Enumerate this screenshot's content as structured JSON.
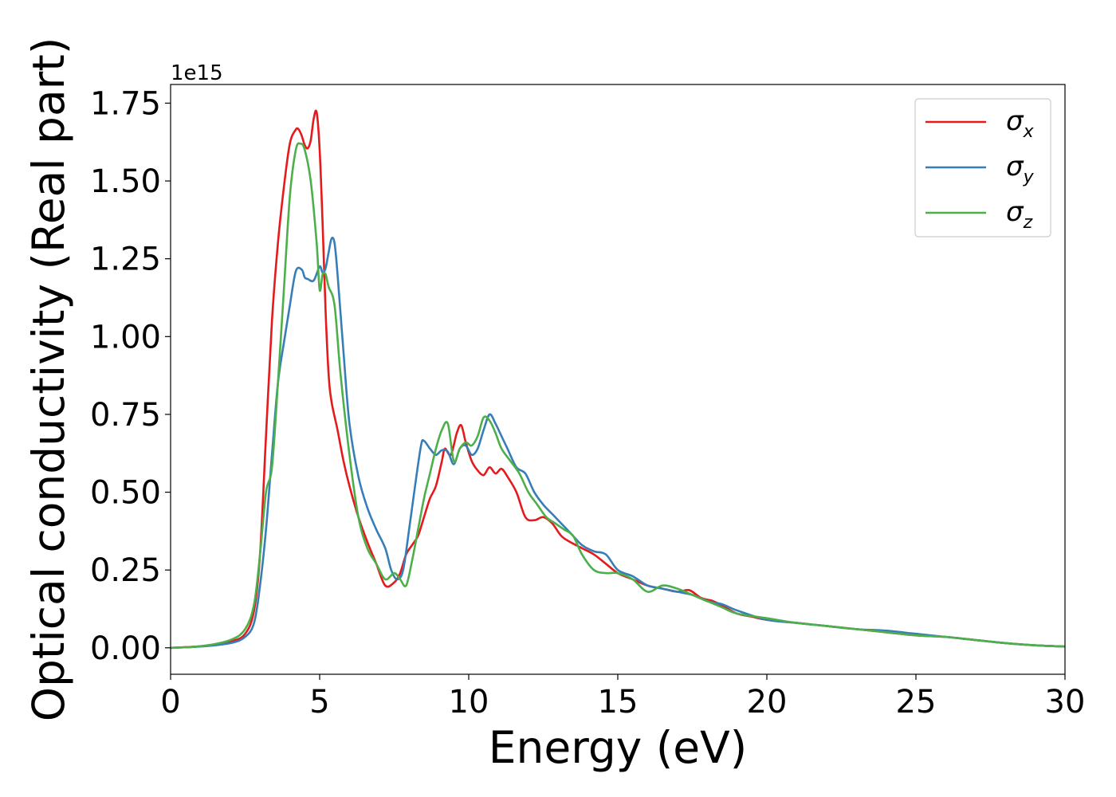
{
  "chart_data": {
    "type": "line",
    "title": "",
    "xlabel": "Energy (eV)",
    "ylabel": "Optical conductivity (Real part)",
    "y_offset_label": "1e15",
    "xlim": [
      0,
      30
    ],
    "ylim": [
      -0.085,
      1.81
    ],
    "xticks": [
      0,
      5,
      10,
      15,
      20,
      25,
      30
    ],
    "xtick_labels": [
      "0",
      "5",
      "10",
      "15",
      "20",
      "25",
      "30"
    ],
    "yticks": [
      0.0,
      0.25,
      0.5,
      0.75,
      1.0,
      1.25,
      1.5,
      1.75
    ],
    "ytick_labels": [
      "0.00",
      "0.25",
      "0.50",
      "0.75",
      "1.00",
      "1.25",
      "1.50",
      "1.75"
    ],
    "grid": false,
    "legend_position": "top-right",
    "series": [
      {
        "name": "σx",
        "legend_symbol": "σ",
        "legend_sub": "x",
        "color": "#e41a1c",
        "x": [
          0,
          1,
          2,
          2.5,
          2.8,
          3.0,
          3.2,
          3.4,
          3.6,
          3.8,
          4.0,
          4.2,
          4.3,
          4.4,
          4.5,
          4.6,
          4.7,
          4.8,
          4.9,
          5.0,
          5.1,
          5.2,
          5.3,
          5.4,
          5.6,
          5.8,
          6.0,
          6.3,
          6.6,
          6.9,
          7.2,
          7.5,
          7.7,
          7.9,
          8.1,
          8.3,
          8.5,
          8.7,
          8.9,
          9.1,
          9.2,
          9.4,
          9.6,
          9.75,
          9.9,
          10.1,
          10.3,
          10.5,
          10.7,
          10.9,
          11.1,
          11.3,
          11.6,
          11.9,
          12.2,
          12.5,
          12.8,
          13.1,
          13.4,
          13.8,
          14.2,
          14.6,
          15.0,
          15.5,
          16.0,
          16.5,
          17.0,
          17.4,
          17.8,
          18.2,
          18.6,
          19.0,
          19.5,
          20.0,
          21.0,
          22.0,
          23.0,
          24.0,
          25.0,
          26.0,
          27.0,
          28.0,
          29.0,
          30.0
        ],
        "y": [
          0.0,
          0.005,
          0.02,
          0.045,
          0.12,
          0.3,
          0.68,
          1.05,
          1.3,
          1.48,
          1.62,
          1.665,
          1.665,
          1.645,
          1.615,
          1.605,
          1.63,
          1.7,
          1.72,
          1.6,
          1.36,
          1.08,
          0.88,
          0.79,
          0.7,
          0.6,
          0.52,
          0.42,
          0.34,
          0.27,
          0.2,
          0.21,
          0.24,
          0.3,
          0.33,
          0.36,
          0.42,
          0.48,
          0.52,
          0.6,
          0.64,
          0.62,
          0.69,
          0.715,
          0.66,
          0.6,
          0.57,
          0.555,
          0.58,
          0.56,
          0.575,
          0.55,
          0.5,
          0.42,
          0.41,
          0.42,
          0.4,
          0.36,
          0.34,
          0.32,
          0.3,
          0.27,
          0.24,
          0.22,
          0.2,
          0.19,
          0.18,
          0.185,
          0.16,
          0.15,
          0.13,
          0.11,
          0.1,
          0.09,
          0.08,
          0.07,
          0.06,
          0.05,
          0.04,
          0.035,
          0.025,
          0.015,
          0.008,
          0.004
        ]
      },
      {
        "name": "σy",
        "legend_symbol": "σ",
        "legend_sub": "y",
        "color": "#377eb8",
        "x": [
          0,
          1,
          2,
          2.5,
          2.8,
          3.0,
          3.2,
          3.4,
          3.6,
          3.8,
          4.0,
          4.2,
          4.4,
          4.5,
          4.6,
          4.8,
          5.0,
          5.1,
          5.2,
          5.3,
          5.4,
          5.5,
          5.6,
          5.8,
          6.0,
          6.3,
          6.6,
          6.9,
          7.2,
          7.4,
          7.6,
          7.8,
          8.0,
          8.2,
          8.4,
          8.5,
          8.7,
          8.9,
          9.1,
          9.3,
          9.5,
          9.7,
          9.9,
          10.1,
          10.3,
          10.5,
          10.7,
          10.9,
          11.1,
          11.3,
          11.6,
          11.9,
          12.2,
          12.5,
          12.8,
          13.1,
          13.4,
          13.8,
          14.2,
          14.6,
          15.0,
          15.5,
          16.0,
          16.5,
          17.0,
          17.5,
          18.0,
          18.5,
          19.0,
          20.0,
          21.0,
          22.0,
          23.0,
          24.0,
          25.0,
          26.0,
          27.0,
          28.0,
          29.0,
          30.0
        ],
        "y": [
          0.0,
          0.004,
          0.015,
          0.035,
          0.08,
          0.2,
          0.38,
          0.62,
          0.85,
          0.98,
          1.1,
          1.21,
          1.215,
          1.19,
          1.185,
          1.18,
          1.225,
          1.205,
          1.22,
          1.27,
          1.315,
          1.3,
          1.2,
          0.95,
          0.72,
          0.55,
          0.45,
          0.38,
          0.32,
          0.25,
          0.22,
          0.25,
          0.38,
          0.52,
          0.65,
          0.665,
          0.64,
          0.62,
          0.635,
          0.63,
          0.59,
          0.64,
          0.65,
          0.62,
          0.64,
          0.7,
          0.75,
          0.72,
          0.68,
          0.64,
          0.58,
          0.56,
          0.5,
          0.46,
          0.43,
          0.4,
          0.37,
          0.33,
          0.31,
          0.3,
          0.25,
          0.23,
          0.2,
          0.19,
          0.18,
          0.17,
          0.15,
          0.14,
          0.12,
          0.09,
          0.08,
          0.07,
          0.06,
          0.055,
          0.045,
          0.035,
          0.025,
          0.015,
          0.008,
          0.004
        ]
      },
      {
        "name": "σz",
        "legend_symbol": "σ",
        "legend_sub": "z",
        "color": "#4daf4a",
        "x": [
          0,
          1,
          2,
          2.5,
          2.8,
          3.0,
          3.2,
          3.4,
          3.6,
          3.8,
          4.0,
          4.2,
          4.35,
          4.5,
          4.7,
          4.9,
          5.0,
          5.1,
          5.2,
          5.3,
          5.5,
          5.7,
          6.0,
          6.3,
          6.6,
          6.9,
          7.2,
          7.5,
          7.7,
          7.9,
          8.1,
          8.3,
          8.5,
          8.7,
          8.9,
          9.1,
          9.3,
          9.5,
          9.7,
          9.9,
          10.1,
          10.3,
          10.5,
          10.7,
          10.9,
          11.1,
          11.4,
          11.7,
          12.0,
          12.3,
          12.6,
          12.9,
          13.2,
          13.5,
          13.8,
          14.2,
          14.6,
          15.0,
          15.5,
          16.0,
          16.5,
          17.0,
          17.5,
          18.0,
          18.5,
          19.0,
          20.0,
          21.0,
          22.0,
          23.0,
          24.0,
          25.0,
          26.0,
          27.0,
          28.0,
          29.0,
          30.0
        ],
        "y": [
          0.0,
          0.005,
          0.025,
          0.06,
          0.14,
          0.3,
          0.5,
          0.58,
          0.85,
          1.15,
          1.45,
          1.6,
          1.62,
          1.6,
          1.5,
          1.3,
          1.15,
          1.2,
          1.2,
          1.16,
          1.1,
          0.88,
          0.62,
          0.42,
          0.32,
          0.27,
          0.22,
          0.24,
          0.22,
          0.2,
          0.28,
          0.38,
          0.48,
          0.56,
          0.64,
          0.7,
          0.72,
          0.6,
          0.64,
          0.66,
          0.65,
          0.68,
          0.74,
          0.73,
          0.69,
          0.64,
          0.6,
          0.56,
          0.5,
          0.46,
          0.42,
          0.4,
          0.38,
          0.36,
          0.3,
          0.25,
          0.24,
          0.24,
          0.22,
          0.18,
          0.2,
          0.19,
          0.17,
          0.15,
          0.13,
          0.11,
          0.095,
          0.08,
          0.07,
          0.06,
          0.05,
          0.04,
          0.035,
          0.025,
          0.015,
          0.008,
          0.004
        ]
      }
    ]
  }
}
